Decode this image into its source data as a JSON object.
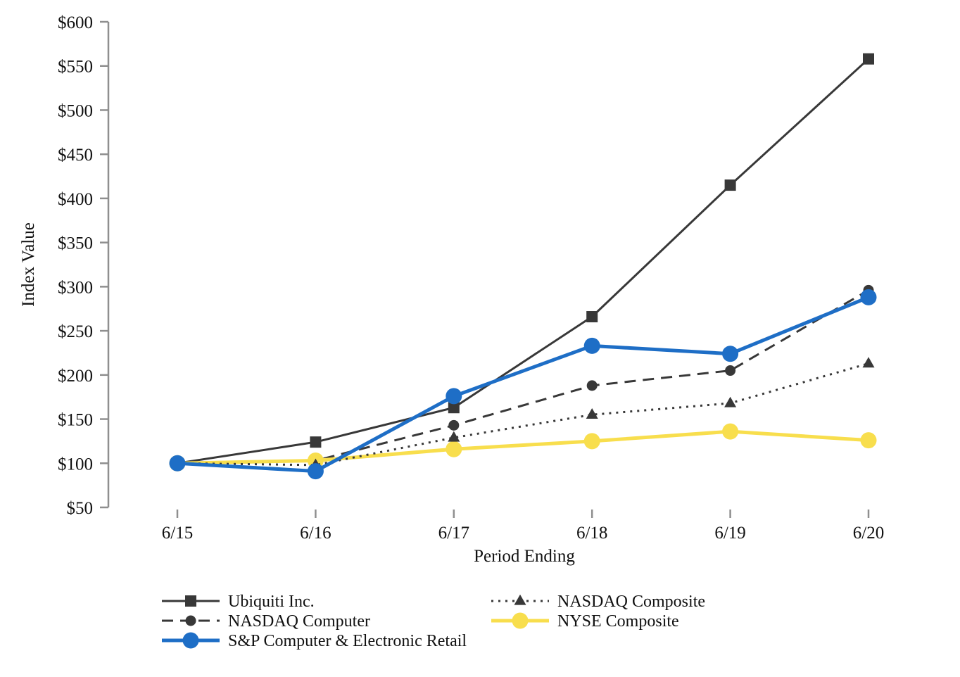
{
  "page": {
    "background": "#ffffff",
    "axis_color": "#8f8f8f",
    "text_color": "#111111"
  },
  "chart_data": {
    "type": "line",
    "title": "",
    "xlabel": "Period Ending",
    "ylabel": "Index Value",
    "categories": [
      "6/15",
      "6/16",
      "6/17",
      "6/18",
      "6/19",
      "6/20"
    ],
    "ylim": [
      50,
      600
    ],
    "ytick_step": 50,
    "ytick_prefix": "$",
    "ytick_labels": [
      "$50",
      "$100",
      "$150",
      "$200",
      "$250",
      "$300",
      "$350",
      "$400",
      "$450",
      "$500",
      "$550",
      "$600"
    ],
    "grid": false,
    "legend_position": "bottom",
    "series": [
      {
        "name": "Ubiquiti Inc.",
        "values": [
          100,
          124,
          163,
          266,
          415,
          558
        ],
        "color": "#383838",
        "marker": "square",
        "line_style": "solid",
        "line_width": 3,
        "marker_size": 16
      },
      {
        "name": "NASDAQ Computer",
        "values": [
          100,
          103,
          143,
          188,
          205,
          296
        ],
        "color": "#383838",
        "marker": "circle",
        "line_style": "dashed",
        "line_width": 3,
        "marker_size": 15
      },
      {
        "name": "S&P Computer & Electronic Retail",
        "values": [
          100,
          91,
          176,
          233,
          224,
          288
        ],
        "color": "#1e6ec6",
        "marker": "circle",
        "line_style": "solid",
        "line_width": 5,
        "marker_size": 23
      },
      {
        "name": "NASDAQ Composite",
        "values": [
          100,
          98,
          129,
          155,
          168,
          213
        ],
        "color": "#383838",
        "marker": "triangle",
        "line_style": "dotted",
        "line_width": 3,
        "marker_size": 17
      },
      {
        "name": "NYSE Composite",
        "values": [
          100,
          103,
          116,
          125,
          136,
          126
        ],
        "color": "#f8de4d",
        "marker": "circle",
        "line_style": "solid",
        "line_width": 5,
        "marker_size": 23
      }
    ],
    "draw_order": [
      "Ubiquiti Inc.",
      "NASDAQ Computer",
      "NYSE Composite",
      "NASDAQ Composite",
      "S&P Computer & Electronic Retail"
    ],
    "legend_columns": [
      [
        "Ubiquiti Inc.",
        "NASDAQ Computer",
        "S&P Computer & Electronic Retail"
      ],
      [
        "NASDAQ Composite",
        "NYSE Composite"
      ]
    ]
  }
}
